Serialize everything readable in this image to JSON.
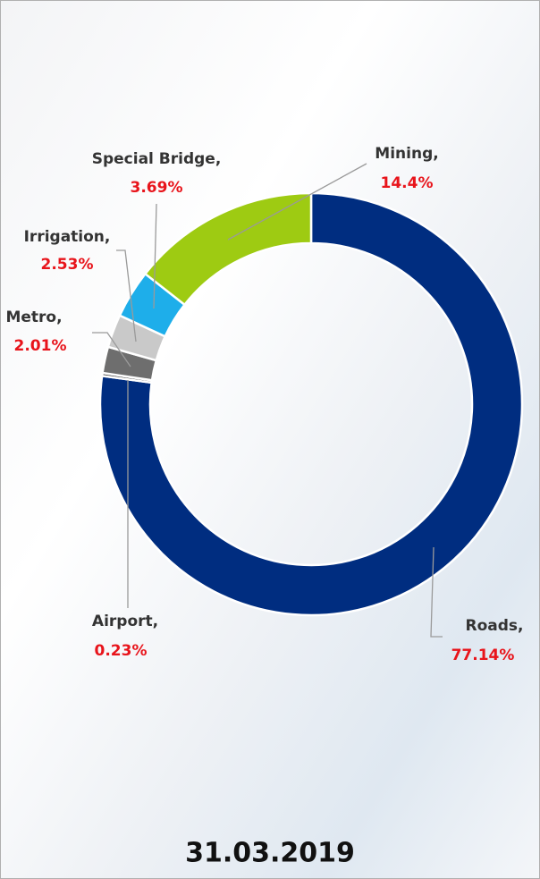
{
  "chart_data": {
    "type": "donut",
    "title": "31.03.2019",
    "categories": [
      "Roads,",
      "Airport,",
      "Metro,",
      "Irrigation,",
      "Special Bridge,",
      "Mining,"
    ],
    "values": [
      77.14,
      0.23,
      2.01,
      2.53,
      3.69,
      14.4
    ],
    "value_labels": [
      "77.14%",
      "0.23%",
      "2.01%",
      "2.53%",
      "3.69%",
      "14.4%"
    ],
    "colors": [
      "#002d80",
      "#3a3a3a",
      "#6e6e6e",
      "#c9c9c9",
      "#1eaeea",
      "#9ecb12"
    ]
  }
}
